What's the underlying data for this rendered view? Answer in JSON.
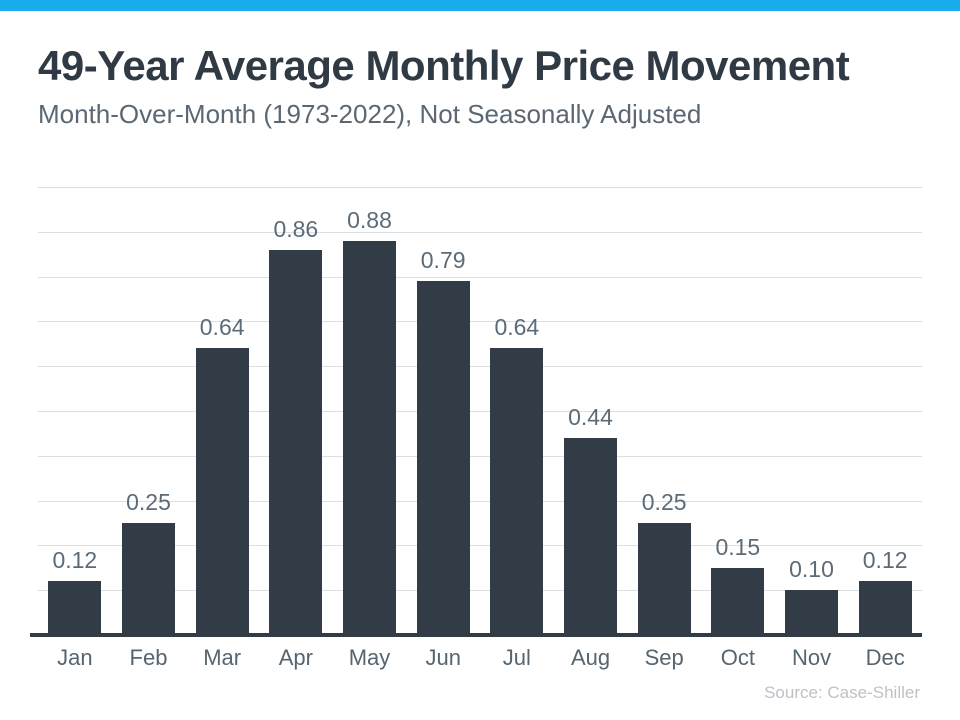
{
  "page": {
    "background_color": "#ffffff",
    "accent_bar_color": "#19aceb"
  },
  "header": {
    "title": "49-Year Average Monthly Price Movement",
    "subtitle": "Month-Over-Month (1973-2022), Not Seasonally Adjusted"
  },
  "chart_data": {
    "type": "bar",
    "title": "49-Year Average Monthly Price Movement",
    "subtitle": "Month-Over-Month (1973-2022), Not Seasonally Adjusted",
    "categories": [
      "Jan",
      "Feb",
      "Mar",
      "Apr",
      "May",
      "Jun",
      "Jul",
      "Aug",
      "Sep",
      "Oct",
      "Nov",
      "Dec"
    ],
    "values": [
      0.12,
      0.25,
      0.64,
      0.86,
      0.88,
      0.79,
      0.64,
      0.44,
      0.25,
      0.15,
      0.1,
      0.12
    ],
    "value_labels": [
      "0.12",
      "0.25",
      "0.64",
      "0.86",
      "0.88",
      "0.79",
      "0.64",
      "0.44",
      "0.25",
      "0.15",
      "0.10",
      "0.12"
    ],
    "xlabel": "",
    "ylabel": "",
    "ylim": [
      0,
      1.0
    ],
    "gridline_step": 0.1,
    "grid": "horizontal",
    "legend": "none",
    "y_axis_tick_labels_visible": false,
    "bar_color": "#313c46",
    "axis_color": "#313c46",
    "gridline_color": "#dcdfe2",
    "value_label_color": "#5c6b78",
    "month_label_color": "#56656f"
  },
  "footer": {
    "source": "Source: Case-Shiller"
  }
}
